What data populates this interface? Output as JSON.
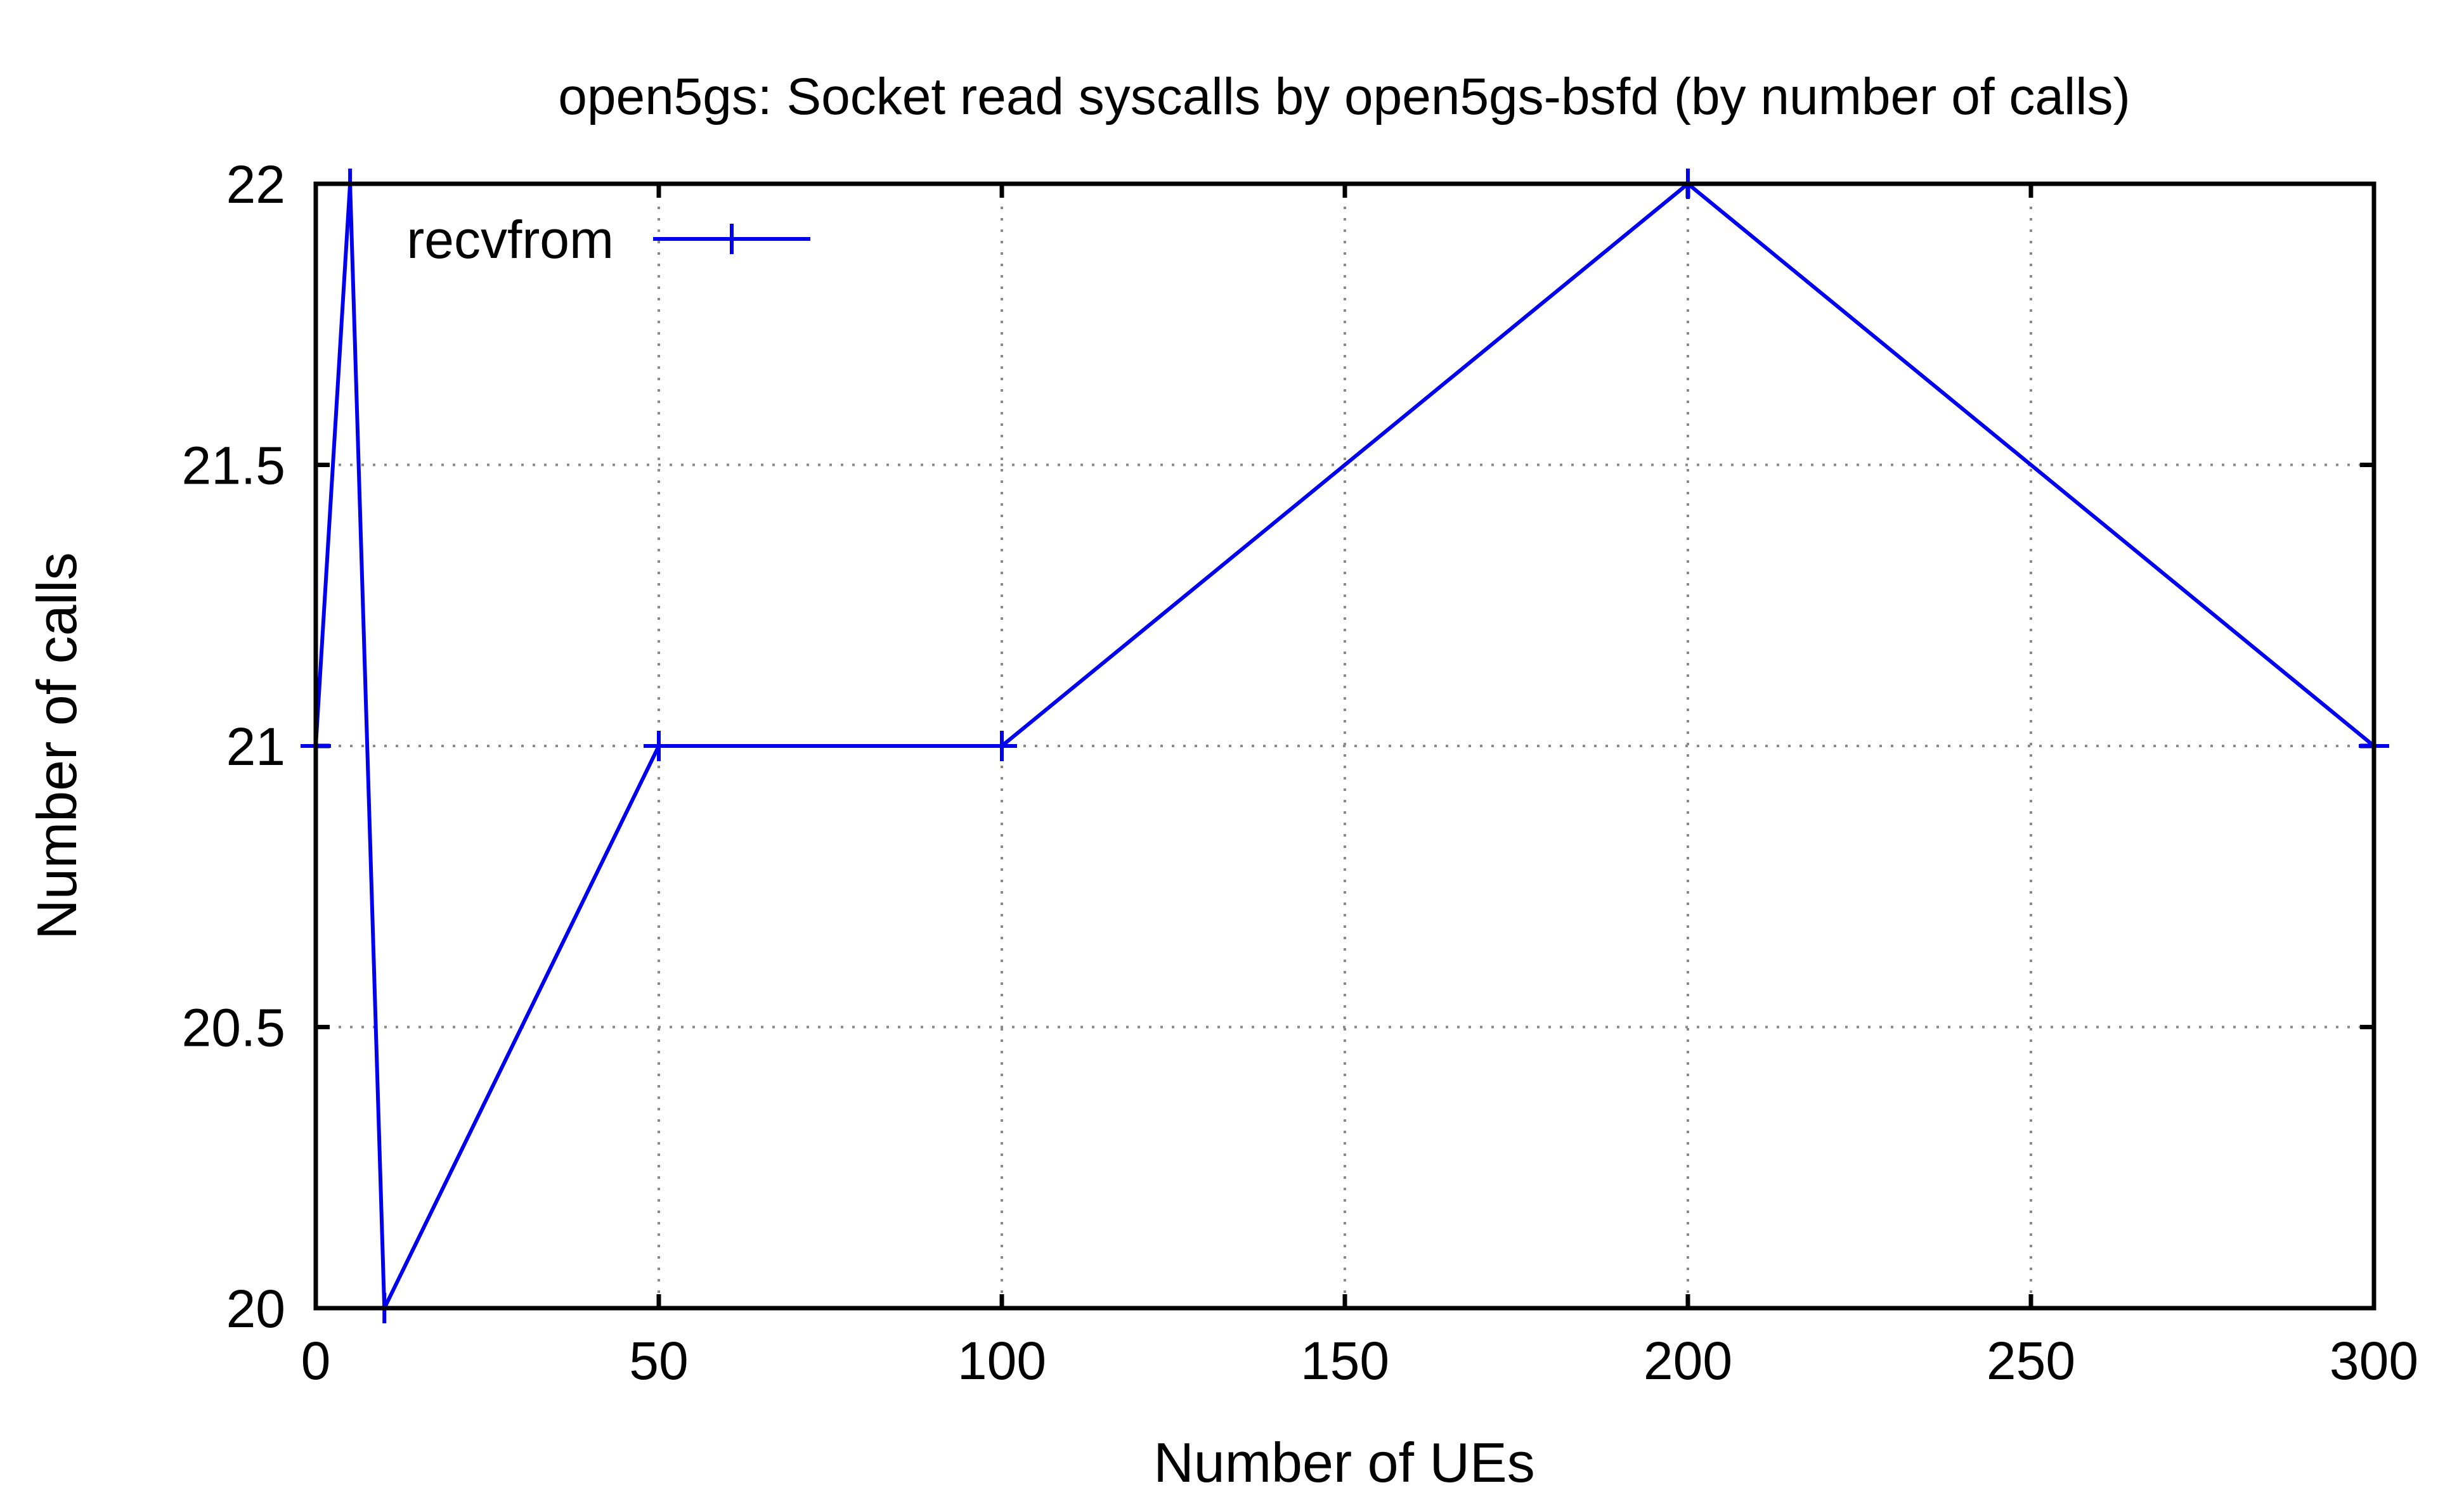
{
  "colors": {
    "series": "#0000ee",
    "axis": "#000000",
    "grid": "#8a8a8a",
    "background": "#ffffff"
  },
  "chart_data": {
    "type": "line",
    "title": "open5gs: Socket read syscalls by open5gs-bsfd (by number of calls)",
    "xlabel": "Number of UEs",
    "ylabel": "Number of calls",
    "xlim": [
      0,
      300
    ],
    "ylim": [
      20,
      22
    ],
    "xticks": [
      0,
      50,
      100,
      150,
      200,
      250,
      300
    ],
    "yticks": [
      20,
      20.5,
      21,
      21.5,
      22
    ],
    "xtick_labels": [
      "0",
      "50",
      "100",
      "150",
      "200",
      "250",
      "300"
    ],
    "ytick_labels": [
      "20",
      "20.5",
      "21",
      "21.5",
      "22"
    ],
    "grid": true,
    "legend_position": "top-left",
    "series": [
      {
        "name": "recvfrom",
        "color": "#0000ee",
        "marker": "plus",
        "x": [
          0,
          5,
          10,
          50,
          100,
          200,
          300
        ],
        "y": [
          21,
          22,
          20,
          21,
          21,
          22,
          21
        ]
      }
    ]
  }
}
